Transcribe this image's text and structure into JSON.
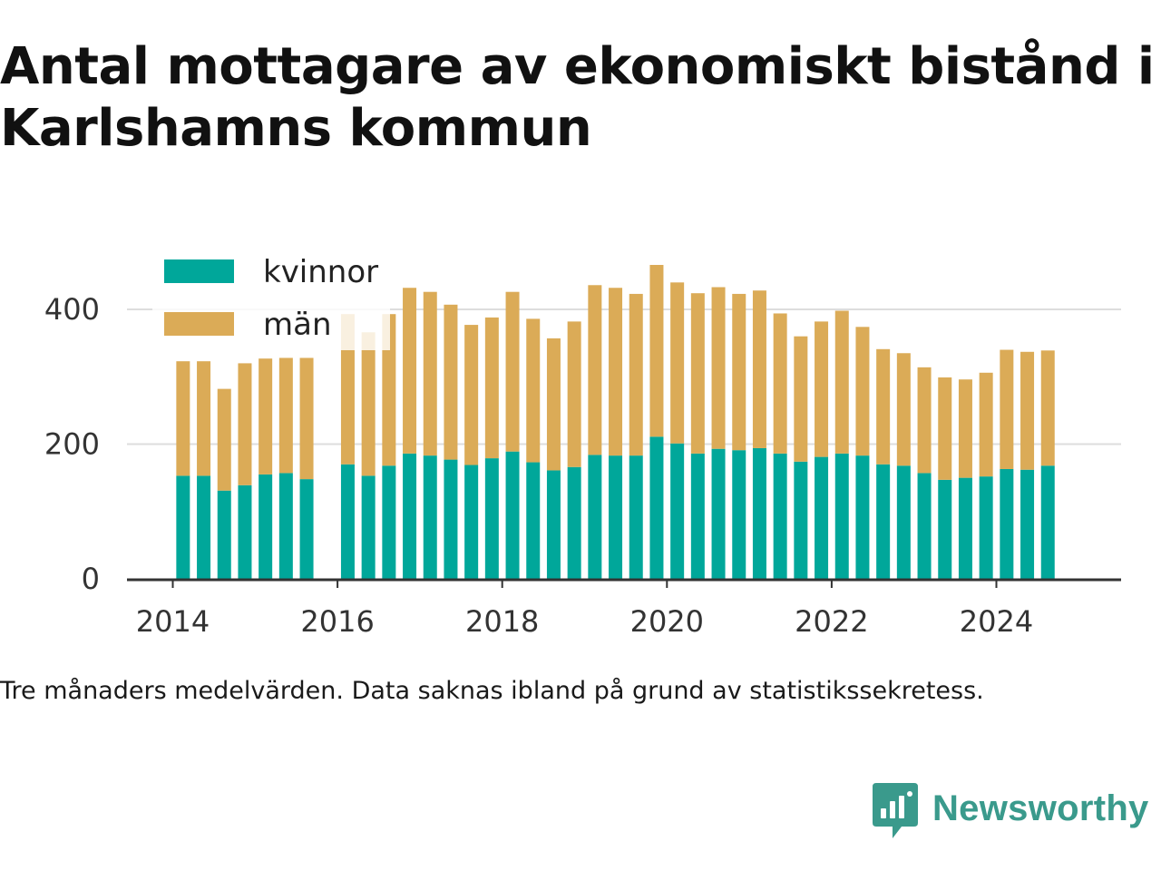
{
  "title": "Antal mottagare av ekonomiskt bistånd i Karlshamns kommun",
  "note": "Tre månaders medelvärden. Data saknas ibland på grund av statistikssekretess.",
  "brand": {
    "name": "Newsworthy",
    "color": "#3a9a8c"
  },
  "chart_data": {
    "type": "bar",
    "stacked": true,
    "x_ticks": [
      "2014",
      "2016",
      "2018",
      "2020",
      "2022",
      "2024"
    ],
    "y_ticks": [
      "0",
      "200",
      "400"
    ],
    "ylim": [
      0,
      480
    ],
    "xlim": [
      "2013-07",
      "2025-07"
    ],
    "grid": true,
    "legend_position": "top-left",
    "x": [
      "2014-04",
      "2014-07",
      "2014-10",
      "2015-01",
      "2015-04",
      "2015-07",
      "2015-10",
      "2016-01",
      "2016-04",
      "2016-07",
      "2016-10",
      "2017-01",
      "2017-04",
      "2017-07",
      "2017-10",
      "2018-01",
      "2018-04",
      "2018-07",
      "2018-10",
      "2019-01",
      "2019-04",
      "2019-07",
      "2019-10",
      "2020-01",
      "2020-04",
      "2020-07",
      "2020-10",
      "2021-01",
      "2021-04",
      "2021-07",
      "2021-10",
      "2022-01",
      "2022-04",
      "2022-07",
      "2022-10",
      "2023-01",
      "2023-04",
      "2023-07",
      "2023-10",
      "2024-01",
      "2024-04",
      "2024-07",
      "2024-10"
    ],
    "series": [
      {
        "name": "kvinnor",
        "color": "#00a79a",
        "values": [
          153,
          153,
          131,
          139,
          155,
          157,
          148,
          null,
          170,
          153,
          168,
          186,
          183,
          177,
          169,
          179,
          189,
          173,
          161,
          166,
          184,
          183,
          183,
          211,
          201,
          186,
          193,
          191,
          194,
          186,
          174,
          181,
          186,
          183,
          170,
          168,
          157,
          147,
          150,
          152,
          163,
          162,
          168
        ]
      },
      {
        "name": "män",
        "color": "#dbab57",
        "values": [
          170,
          170,
          151,
          181,
          172,
          171,
          180,
          null,
          223,
          213,
          225,
          246,
          243,
          230,
          208,
          209,
          237,
          213,
          196,
          216,
          252,
          249,
          240,
          255,
          239,
          238,
          240,
          232,
          234,
          208,
          186,
          201,
          212,
          191,
          171,
          167,
          157,
          152,
          146,
          154,
          177,
          175,
          171
        ]
      }
    ]
  }
}
